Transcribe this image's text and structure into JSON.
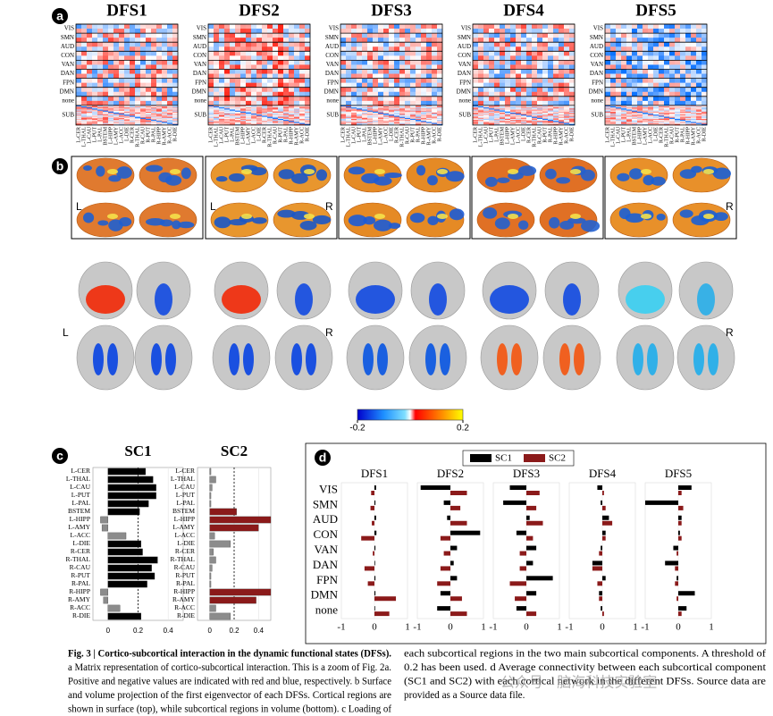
{
  "panel_labels": [
    "a",
    "b",
    "c",
    "d"
  ],
  "panel_a": {
    "titles": [
      "DFS1",
      "DFS2",
      "DFS3",
      "DFS4",
      "DFS5"
    ],
    "rows": [
      "VIS",
      "SMN",
      "AUD",
      "CON",
      "VAN",
      "DAN",
      "FPN",
      "DMN",
      "none",
      "SUB"
    ],
    "columns": [
      "L-CER",
      "L-THAL",
      "L-CAU",
      "L-PUT",
      "L-PAL",
      "BSTEM",
      "L-HIPP",
      "L-AMY",
      "L-ACC",
      "L-DIE",
      "R-CER",
      "R-THAL",
      "R-CAU",
      "R-PUT",
      "R-PAL",
      "R-HIPP",
      "R-AMY",
      "R-ACC",
      "R-DIE"
    ]
  },
  "panel_b": {
    "left_label": "L",
    "right_label": "R",
    "colorbar": {
      "lim": [
        -0.2,
        0.2
      ],
      "ticks": [
        -0.2,
        0.2
      ]
    }
  },
  "panel_c": {
    "type": "bar",
    "orientation": "horizontal",
    "categories": [
      "L-CER",
      "L-THAL",
      "L-CAU",
      "L-PUT",
      "L-PAL",
      "BSTEM",
      "L-HIPP",
      "L-AMY",
      "L-ACC",
      "L-DIE",
      "R-CER",
      "R-THAL",
      "R-CAU",
      "R-PUT",
      "R-PAL",
      "R-HIPP",
      "R-AMY",
      "R-ACC",
      "R-DIE"
    ],
    "threshold": 0.2,
    "xlim": [
      -0.1,
      0.5
    ],
    "xticks": [
      0,
      0.2,
      0.4
    ],
    "below_threshold_color": "#8c8c8c",
    "charts": [
      {
        "title": "SC1",
        "color": "#000000",
        "values": [
          0.25,
          0.3,
          0.32,
          0.32,
          0.27,
          0.21,
          -0.05,
          -0.04,
          0.12,
          0.22,
          0.23,
          0.33,
          0.29,
          0.31,
          0.26,
          -0.05,
          -0.03,
          0.08,
          0.22
        ]
      },
      {
        "title": "SC2",
        "color": "#8b1a1a",
        "values": [
          0.01,
          0.05,
          0.02,
          0.01,
          0.01,
          0.22,
          0.5,
          0.4,
          0.04,
          0.17,
          0.03,
          0.05,
          0.02,
          0.01,
          0.01,
          0.5,
          0.38,
          0.05,
          0.17
        ]
      }
    ]
  },
  "panel_d": {
    "type": "bar",
    "orientation": "horizontal",
    "categories": [
      "VIS",
      "SMN",
      "AUD",
      "CON",
      "VAN",
      "DAN",
      "FPN",
      "DMN",
      "none"
    ],
    "xlim": [
      -1,
      1
    ],
    "xticks": [
      -1,
      0,
      1
    ],
    "legend_names": [
      "SC1",
      "SC2"
    ],
    "colors": [
      "#000000",
      "#8b1a1a"
    ],
    "charts": [
      {
        "title": "DFS1",
        "series": [
          [
            0.05,
            0.03,
            0.05,
            0.06,
            0.03,
            0.02,
            0.03,
            0.03,
            0.02
          ],
          [
            -0.1,
            -0.12,
            -0.08,
            -0.4,
            -0.05,
            -0.3,
            -0.2,
            0.65,
            0.45
          ]
        ]
      },
      {
        "title": "DFS2",
        "series": [
          [
            -0.9,
            -0.2,
            -0.1,
            0.9,
            0.2,
            0.1,
            0.2,
            -0.3,
            -0.4
          ],
          [
            0.5,
            0.3,
            0.5,
            -0.3,
            -0.2,
            -0.3,
            -0.4,
            0.35,
            0.5
          ]
        ]
      },
      {
        "title": "DFS3",
        "series": [
          [
            -0.5,
            -0.7,
            0.1,
            -0.3,
            0.3,
            0.2,
            0.8,
            0.3,
            -0.3
          ],
          [
            0.4,
            0.3,
            0.5,
            0.2,
            -0.2,
            -0.2,
            -0.5,
            -0.35,
            0.3
          ]
        ]
      },
      {
        "title": "DFS4",
        "series": [
          [
            -0.15,
            -0.05,
            0.2,
            0.1,
            -0.05,
            -0.3,
            0.1,
            -0.1,
            -0.05
          ],
          [
            0.05,
            0.1,
            0.3,
            0.1,
            -0.1,
            -0.3,
            -0.15,
            -0.1,
            0.05
          ]
        ]
      },
      {
        "title": "DFS5",
        "series": [
          [
            0.4,
            -1.0,
            0.1,
            0.05,
            -0.15,
            -0.4,
            -0.05,
            0.5,
            0.25
          ],
          [
            0.1,
            0.15,
            0.1,
            0.1,
            -0.05,
            -0.1,
            -0.1,
            -0.05,
            0.1
          ]
        ]
      }
    ]
  },
  "caption": {
    "left": [
      "Fig. 3 | Cortico-subcortical interaction in the dynamic functional states (DFSs).",
      "a Matrix representation of cortico-subcortical interaction. This is a zoom of Fig. 2a.",
      "Positive and negative values are indicated with red and blue, respectively. b Surface",
      "and volume projection of the first eigenvector of each DFSs. Cortical regions are",
      "shown in surface (top), while subcortical regions in volume (bottom). c Loading of"
    ],
    "right": [
      "each subcortical regions in the two main subcortical components. A threshold of",
      "0.2 has been used. d Average connectivity between each subcortical component",
      "(SC1 and SC2) with each cortical network in the different DFSs. Source data are",
      "provided as a Source data file."
    ]
  },
  "watermark": "公众号 · 脑海科技实验室"
}
